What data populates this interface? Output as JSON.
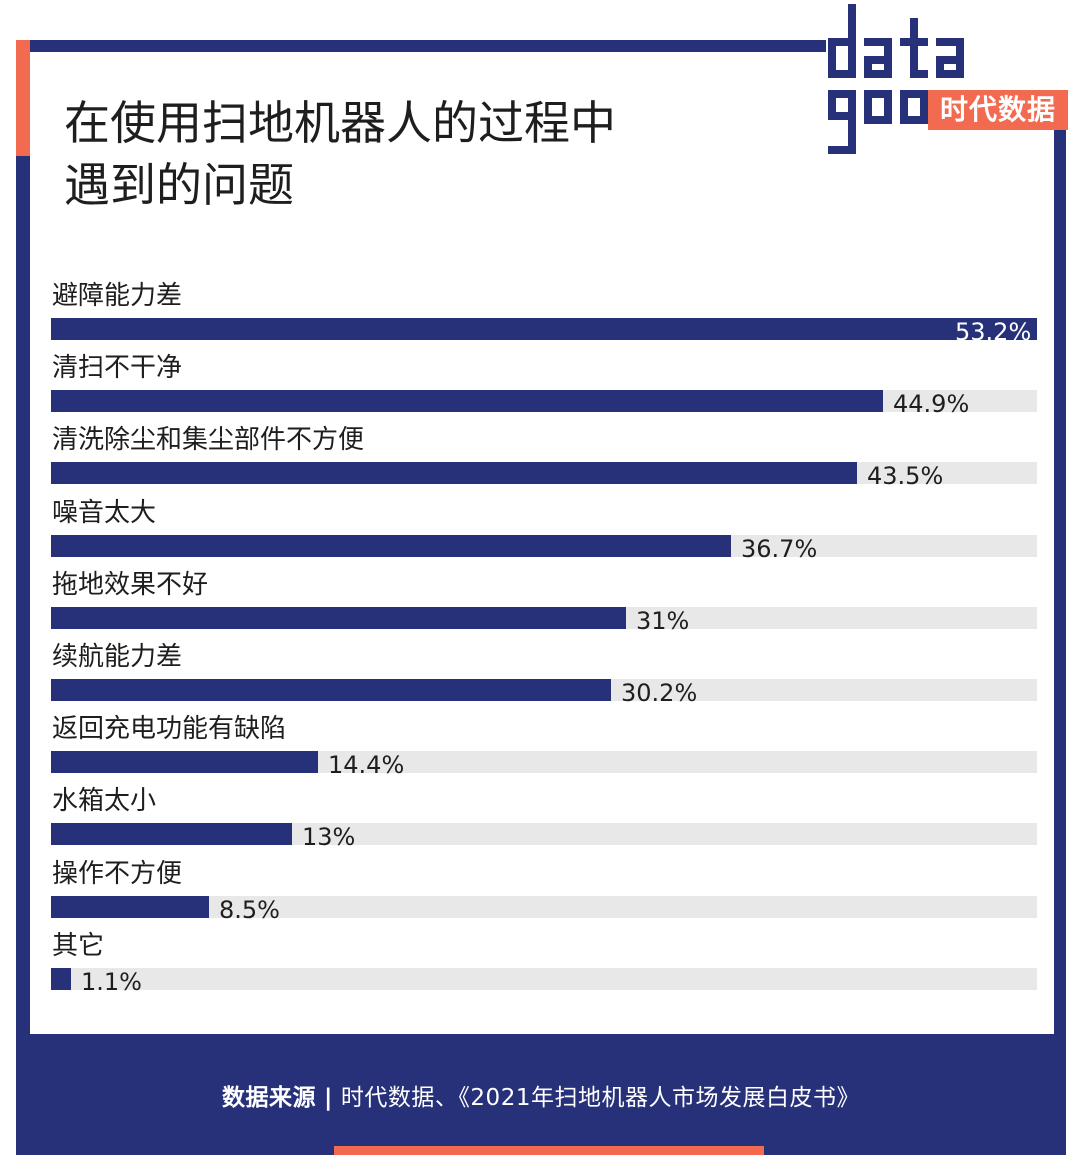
{
  "title": "在使用扫地机器人的过程中\n遇到的问题",
  "logo": {
    "wordmark": "data\ngoo",
    "brand": "时代数据"
  },
  "footer": {
    "source_label": "数据来源",
    "separator": "|",
    "source_text": "时代数据、《2021年扫地机器人市场发展白皮书》"
  },
  "colors": {
    "bar": "#27317a",
    "track": "#e8e8e8",
    "accent": "#f26a4f"
  },
  "chart_data": {
    "type": "bar",
    "orientation": "horizontal",
    "title": "在使用扫地机器人的过程中遇到的问题",
    "categories": [
      "避障能力差",
      "清扫不干净",
      "清洗除尘和集尘部件不方便",
      "噪音太大",
      "拖地效果不好",
      "续航能力差",
      "返回充电功能有缺陷",
      "水箱太小",
      "操作不方便",
      "其它"
    ],
    "values": [
      53.2,
      44.9,
      43.5,
      36.7,
      31,
      30.2,
      14.4,
      13,
      8.5,
      1.1
    ],
    "value_labels": [
      "53.2%",
      "44.9%",
      "43.5%",
      "36.7%",
      "31%",
      "30.2%",
      "14.4%",
      "13%",
      "8.5%",
      "1.1%"
    ],
    "unit": "%",
    "xlim": [
      0,
      53.2
    ],
    "grid": false,
    "legend": "none"
  }
}
